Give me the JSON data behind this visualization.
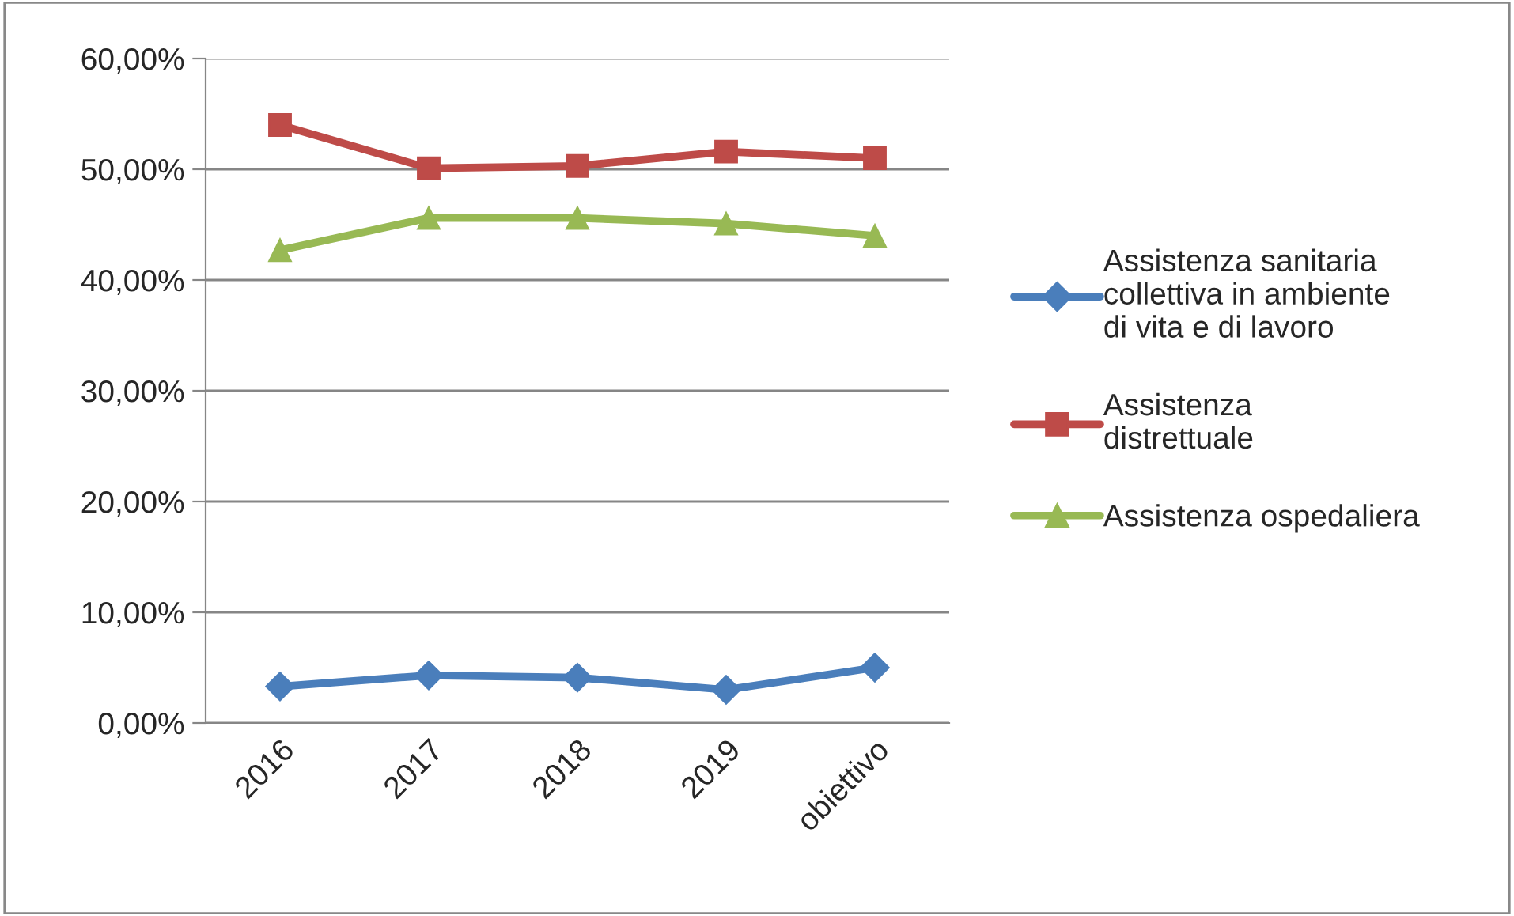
{
  "chart_data": {
    "type": "line",
    "categories": [
      "2016",
      "2017",
      "2018",
      "2019",
      "obiettivo"
    ],
    "series": [
      {
        "name": "Assistenza sanitaria collettiva in ambiente di vita e di lavoro",
        "color": "#4a7ebb",
        "marker": "diamond",
        "values": [
          3.3,
          4.3,
          4.1,
          3.0,
          5.0
        ]
      },
      {
        "name": "Assistenza distrettuale",
        "color": "#be4b48",
        "marker": "square",
        "values": [
          54.0,
          50.1,
          50.3,
          51.6,
          51.0
        ]
      },
      {
        "name": "Assistenza ospedaliera",
        "color": "#98b954",
        "marker": "triangle",
        "values": [
          42.7,
          45.6,
          45.6,
          45.1,
          44.0
        ]
      }
    ],
    "ylim": [
      0,
      60
    ],
    "yticks": [
      {
        "value": 0,
        "label": "0,00%"
      },
      {
        "value": 10,
        "label": "10,00%"
      },
      {
        "value": 20,
        "label": "20,00%"
      },
      {
        "value": 30,
        "label": "30,00%"
      },
      {
        "value": 40,
        "label": "40,00%"
      },
      {
        "value": 50,
        "label": "50,00%"
      },
      {
        "value": 60,
        "label": "60,00%"
      }
    ],
    "grid": "y",
    "legend": "right",
    "line_style": "solid"
  }
}
